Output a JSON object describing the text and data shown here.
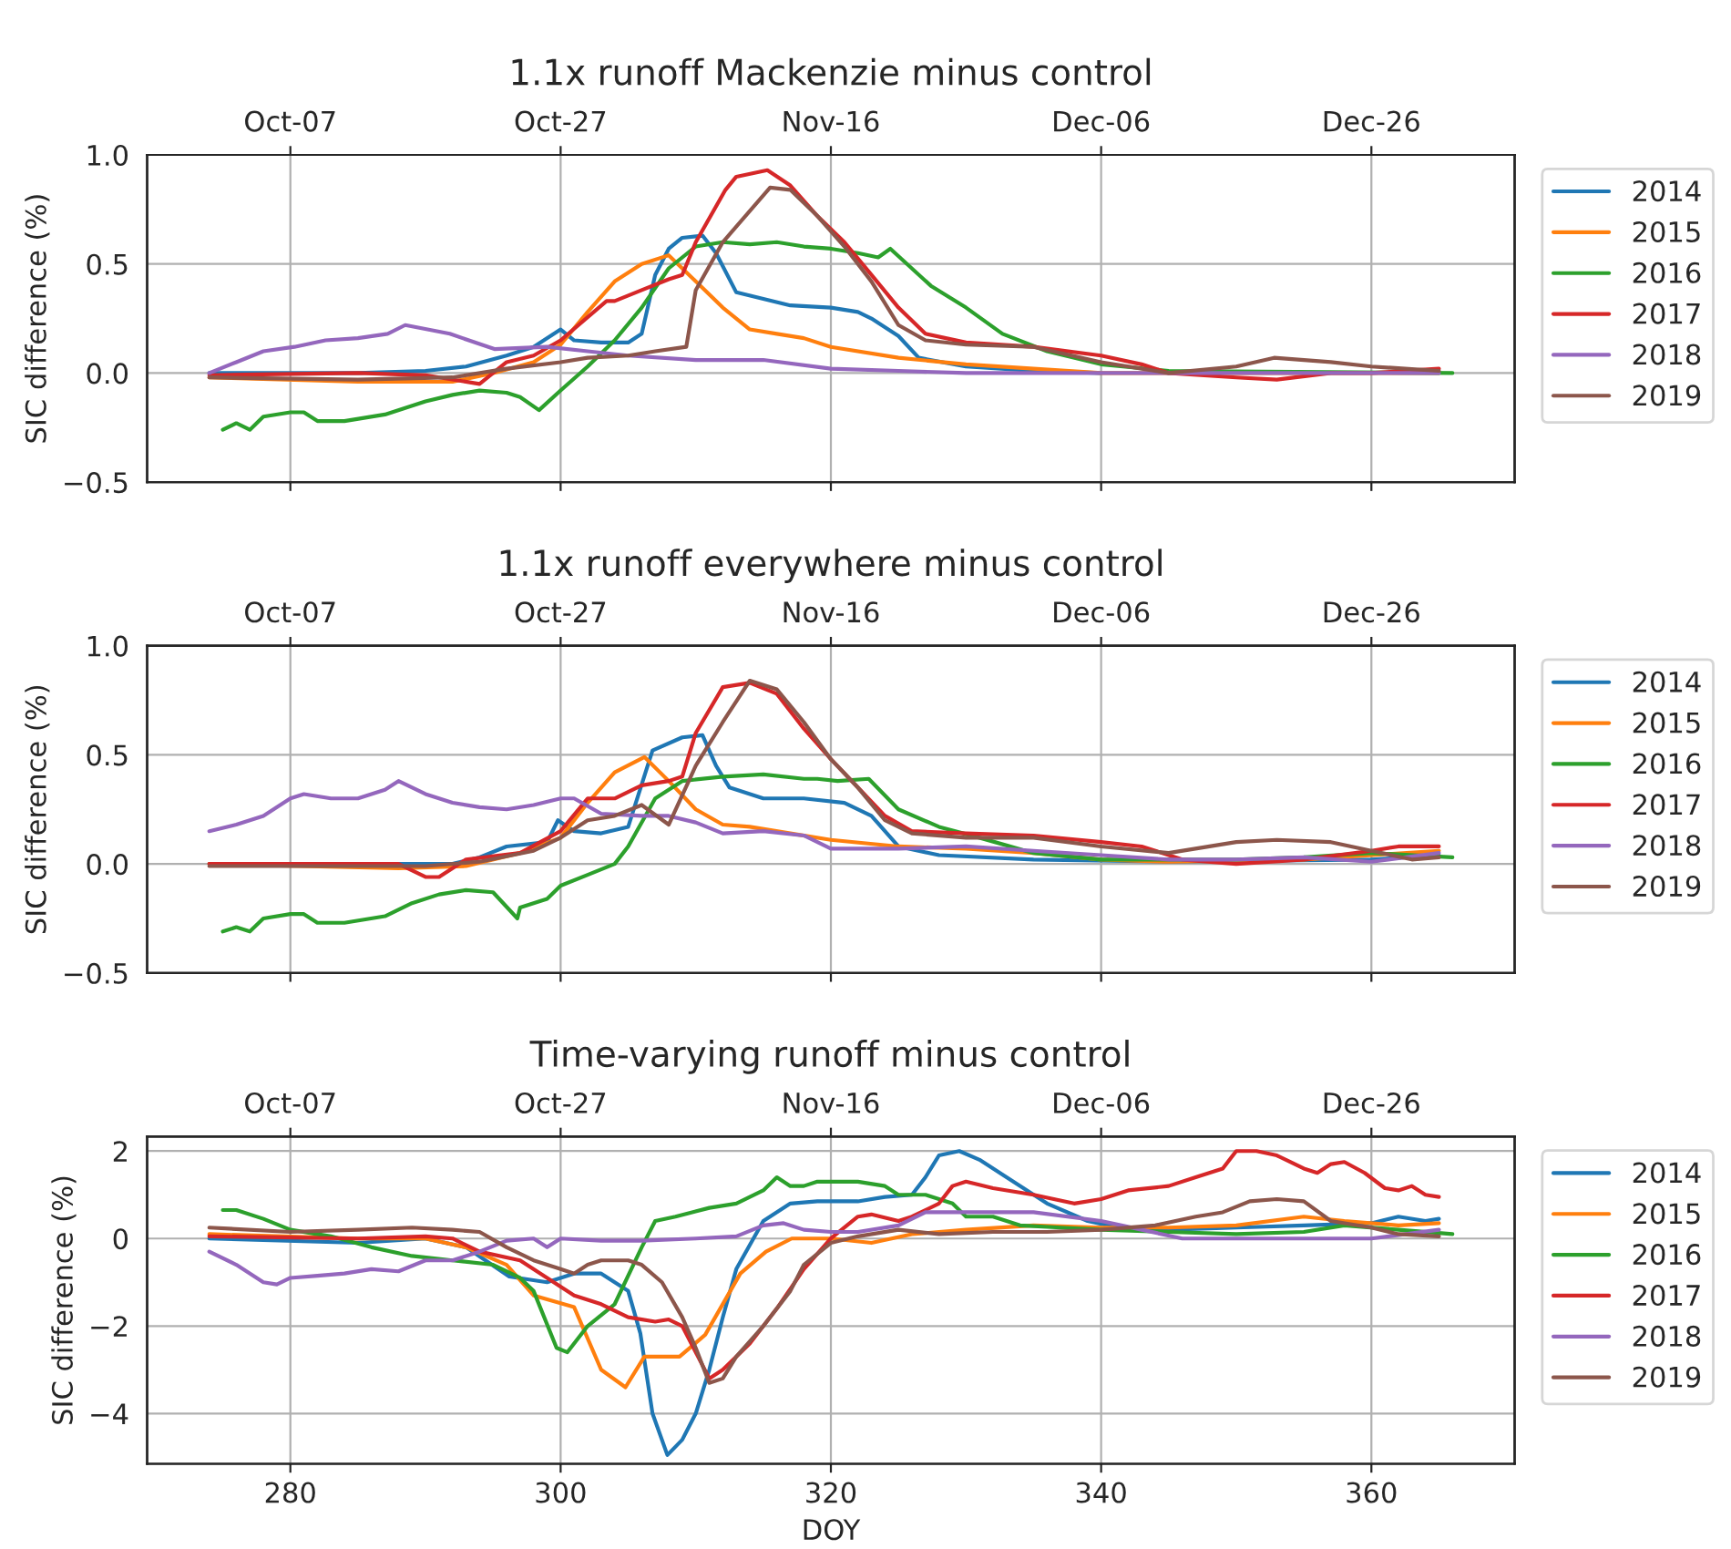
{
  "chart_data": [
    {
      "type": "line",
      "title": "1.1x runoff Mackenzie minus control",
      "ylabel": "SIC difference (%)",
      "xlim": [
        269.4,
        370.6
      ],
      "ylim": [
        -0.5,
        1.0
      ],
      "xticks": [
        280,
        300,
        320,
        340,
        360
      ],
      "tick_labels": "y",
      "x2lim": [
        "2019-09-26T09:36",
        "2020-01-05T14:24"
      ],
      "x2ticks": [
        {
          "value": "2019-10-07",
          "label": "Oct-07"
        },
        {
          "value": "2019-10-27",
          "label": "Oct-27"
        },
        {
          "value": "2019-11-16",
          "label": "Nov-16"
        },
        {
          "value": "2019-12-06",
          "label": "Dec-06"
        },
        {
          "value": "2019-12-26",
          "label": "Dec-26"
        }
      ],
      "yticks": [
        {
          "value": -0.5,
          "label": "−0.5"
        },
        {
          "value": 0,
          "label": "0.0"
        },
        {
          "value": 0.5,
          "label": "0.5"
        },
        {
          "value": 1.0,
          "label": "1.0"
        }
      ],
      "grid": true,
      "legend": "right",
      "line_style": "solid",
      "series": [
        {
          "name": "2014",
          "color": "#1f77b4",
          "x": [
            274,
            280,
            285,
            290,
            293,
            296,
            298,
            300,
            301,
            303,
            305,
            306,
            307,
            308,
            309,
            310.5,
            311.5,
            313,
            315,
            317,
            320,
            322,
            323,
            325,
            326.5,
            330,
            335,
            340
          ],
          "values": [
            0,
            0,
            0,
            0.01,
            0.03,
            0.08,
            0.12,
            0.2,
            0.15,
            0.14,
            0.14,
            0.18,
            0.45,
            0.57,
            0.62,
            0.63,
            0.55,
            0.37,
            0.34,
            0.31,
            0.3,
            0.28,
            0.25,
            0.17,
            0.07,
            0.03,
            0.01,
            0.0
          ]
        },
        {
          "name": "2015",
          "color": "#ff7f0e",
          "x": [
            274,
            285,
            292,
            295,
            298,
            300,
            302,
            304,
            306,
            308,
            310,
            312,
            314,
            316,
            318,
            320,
            325,
            330,
            335,
            340,
            365
          ],
          "values": [
            -0.02,
            -0.04,
            -0.04,
            0.0,
            0.05,
            0.13,
            0.28,
            0.42,
            0.5,
            0.54,
            0.42,
            0.3,
            0.2,
            0.18,
            0.16,
            0.12,
            0.07,
            0.04,
            0.02,
            0.0,
            0.0
          ]
        },
        {
          "name": "2016",
          "color": "#2ca02c",
          "x": [
            275,
            276,
            277,
            278,
            280,
            281,
            282,
            284,
            287,
            290,
            292,
            294,
            296,
            297,
            298.4,
            300,
            302,
            304,
            306,
            308,
            310,
            312,
            314,
            316,
            318,
            320,
            322,
            323.5,
            324.4,
            327.4,
            330,
            332.7,
            336,
            340,
            345,
            366
          ],
          "values": [
            -0.26,
            -0.23,
            -0.26,
            -0.2,
            -0.18,
            -0.18,
            -0.22,
            -0.22,
            -0.19,
            -0.13,
            -0.1,
            -0.08,
            -0.09,
            -0.11,
            -0.17,
            -0.08,
            0.03,
            0.15,
            0.3,
            0.48,
            0.58,
            0.6,
            0.59,
            0.6,
            0.58,
            0.57,
            0.55,
            0.53,
            0.57,
            0.4,
            0.3,
            0.18,
            0.1,
            0.04,
            0.01,
            0.0
          ]
        },
        {
          "name": "2017",
          "color": "#d62728",
          "x": [
            274,
            285,
            290,
            294,
            296,
            298,
            300,
            303.4,
            304,
            306,
            308,
            309,
            310,
            312.2,
            313,
            315.3,
            317,
            319,
            321,
            323,
            325,
            327,
            330,
            335,
            340,
            343,
            345,
            350,
            353,
            357,
            360,
            365
          ],
          "values": [
            -0.01,
            0.0,
            -0.01,
            -0.05,
            0.05,
            0.08,
            0.15,
            0.33,
            0.33,
            0.38,
            0.43,
            0.45,
            0.6,
            0.84,
            0.9,
            0.93,
            0.86,
            0.72,
            0.6,
            0.45,
            0.3,
            0.18,
            0.14,
            0.12,
            0.08,
            0.04,
            0.0,
            -0.02,
            -0.03,
            0.0,
            0.0,
            0.02
          ]
        },
        {
          "name": "2018",
          "color": "#9467bd",
          "x": [
            274,
            276,
            278,
            280.3,
            282.6,
            285,
            287.2,
            288.5,
            291.8,
            295.1,
            299,
            302,
            305,
            310,
            315,
            320,
            325,
            330,
            340,
            365
          ],
          "values": [
            0.0,
            0.05,
            0.1,
            0.12,
            0.15,
            0.16,
            0.18,
            0.22,
            0.18,
            0.11,
            0.12,
            0.1,
            0.08,
            0.06,
            0.06,
            0.02,
            0.01,
            0.0,
            0.0,
            0.0
          ]
        },
        {
          "name": "2019",
          "color": "#8c564b",
          "x": [
            274,
            285,
            292,
            296,
            300,
            302,
            305,
            307,
            309.3,
            310,
            312,
            315.5,
            317,
            319,
            321,
            323,
            325,
            327,
            330,
            335,
            340,
            345,
            350,
            352.8,
            357,
            360,
            365
          ],
          "values": [
            -0.02,
            -0.03,
            -0.02,
            0.02,
            0.05,
            0.07,
            0.08,
            0.1,
            0.12,
            0.38,
            0.6,
            0.85,
            0.84,
            0.72,
            0.58,
            0.42,
            0.22,
            0.15,
            0.13,
            0.12,
            0.05,
            0.0,
            0.03,
            0.07,
            0.05,
            0.03,
            0.01
          ]
        }
      ]
    },
    {
      "type": "line",
      "title": "1.1x runoff everywhere minus control",
      "ylabel": "SIC difference (%)",
      "xlim": [
        269.4,
        370.6
      ],
      "ylim": [
        -0.5,
        1.0
      ],
      "xticks": [
        280,
        300,
        320,
        340,
        360
      ],
      "tick_labels": "y",
      "x2lim": [
        "2019-09-26T09:36",
        "2020-01-05T14:24"
      ],
      "x2ticks": [
        {
          "value": "2019-10-07",
          "label": "Oct-07"
        },
        {
          "value": "2019-10-27",
          "label": "Oct-27"
        },
        {
          "value": "2019-11-16",
          "label": "Nov-16"
        },
        {
          "value": "2019-12-06",
          "label": "Dec-06"
        },
        {
          "value": "2019-12-26",
          "label": "Dec-26"
        }
      ],
      "yticks": [
        {
          "value": -0.5,
          "label": "−0.5"
        },
        {
          "value": 0,
          "label": "0.0"
        },
        {
          "value": 0.5,
          "label": "0.5"
        },
        {
          "value": 1.0,
          "label": "1.0"
        }
      ],
      "grid": true,
      "legend": "right",
      "line_style": "solid",
      "series": [
        {
          "name": "2014",
          "color": "#1f77b4",
          "x": [
            274,
            292,
            294,
            296,
            299,
            299.8,
            301,
            303,
            305,
            306.8,
            309,
            310.5,
            311.5,
            312.5,
            315,
            318,
            321,
            323,
            325,
            328,
            335,
            345,
            360,
            365
          ],
          "values": [
            0,
            0,
            0.03,
            0.08,
            0.1,
            0.2,
            0.15,
            0.14,
            0.17,
            0.52,
            0.58,
            0.59,
            0.45,
            0.35,
            0.3,
            0.3,
            0.28,
            0.22,
            0.08,
            0.04,
            0.02,
            0.01,
            0.02,
            0.04
          ]
        },
        {
          "name": "2015",
          "color": "#ff7f0e",
          "x": [
            274,
            288,
            293,
            297,
            300,
            302,
            304,
            306.2,
            308,
            310,
            312,
            314,
            317,
            320,
            325,
            330,
            335,
            340,
            345,
            355,
            365
          ],
          "values": [
            0.0,
            -0.02,
            -0.01,
            0.05,
            0.12,
            0.28,
            0.42,
            0.49,
            0.38,
            0.25,
            0.18,
            0.17,
            0.14,
            0.11,
            0.08,
            0.07,
            0.05,
            0.02,
            0.01,
            0.02,
            0.06
          ]
        },
        {
          "name": "2016",
          "color": "#2ca02c",
          "x": [
            275,
            276,
            277,
            278,
            280,
            281,
            282,
            284,
            287,
            289,
            291,
            293,
            295,
            296.8,
            297,
            299,
            300,
            302,
            304,
            305,
            307,
            309,
            312,
            315,
            318,
            319,
            320.5,
            322.8,
            325,
            328,
            331,
            335,
            340,
            350,
            355,
            360,
            366
          ],
          "values": [
            -0.31,
            -0.29,
            -0.31,
            -0.25,
            -0.23,
            -0.23,
            -0.27,
            -0.27,
            -0.24,
            -0.18,
            -0.14,
            -0.12,
            -0.13,
            -0.25,
            -0.2,
            -0.16,
            -0.1,
            -0.05,
            0.0,
            0.08,
            0.3,
            0.38,
            0.4,
            0.41,
            0.39,
            0.39,
            0.38,
            0.39,
            0.25,
            0.17,
            0.12,
            0.05,
            0.02,
            0.02,
            0.03,
            0.05,
            0.03
          ]
        },
        {
          "name": "2017",
          "color": "#d62728",
          "x": [
            274,
            288,
            290,
            291,
            293,
            297,
            300,
            302,
            304,
            306,
            308,
            309,
            310,
            312,
            314,
            316,
            318,
            320,
            322,
            324,
            326,
            330,
            335,
            340,
            343,
            346,
            350,
            355,
            360,
            362,
            365
          ],
          "values": [
            0,
            0.0,
            -0.06,
            -0.06,
            0.02,
            0.05,
            0.15,
            0.3,
            0.3,
            0.36,
            0.38,
            0.4,
            0.6,
            0.81,
            0.83,
            0.78,
            0.62,
            0.48,
            0.35,
            0.22,
            0.15,
            0.14,
            0.13,
            0.1,
            0.08,
            0.02,
            0.0,
            0.02,
            0.06,
            0.08,
            0.08
          ]
        },
        {
          "name": "2018",
          "color": "#9467bd",
          "x": [
            274,
            276,
            278,
            280,
            281,
            283,
            285,
            287,
            288,
            290,
            292,
            294,
            296,
            298,
            300,
            301,
            303,
            306,
            308,
            310,
            312,
            315,
            318,
            320,
            325,
            330,
            335,
            340,
            345,
            350,
            355,
            360,
            365
          ],
          "values": [
            0.15,
            0.18,
            0.22,
            0.3,
            0.32,
            0.3,
            0.3,
            0.34,
            0.38,
            0.32,
            0.28,
            0.26,
            0.25,
            0.27,
            0.3,
            0.3,
            0.23,
            0.22,
            0.22,
            0.19,
            0.14,
            0.15,
            0.13,
            0.07,
            0.07,
            0.08,
            0.06,
            0.04,
            0.02,
            0.02,
            0.03,
            0.01,
            0.05
          ]
        },
        {
          "name": "2019",
          "color": "#8c564b",
          "x": [
            274,
            290,
            294,
            298,
            300,
            302,
            304,
            306,
            308,
            310,
            312,
            314,
            316,
            318,
            320,
            322,
            324,
            326,
            330,
            335,
            340,
            345,
            350,
            353,
            357,
            360,
            363,
            365
          ],
          "values": [
            -0.01,
            -0.01,
            0.01,
            0.06,
            0.12,
            0.2,
            0.22,
            0.27,
            0.18,
            0.45,
            0.65,
            0.84,
            0.8,
            0.65,
            0.48,
            0.35,
            0.2,
            0.14,
            0.12,
            0.12,
            0.08,
            0.05,
            0.1,
            0.11,
            0.1,
            0.06,
            0.02,
            0.03
          ]
        }
      ]
    },
    {
      "type": "line",
      "title": "Time-varying runoff minus control",
      "ylabel": "SIC difference (%)",
      "xlabel": "DOY",
      "xlim": [
        269.4,
        370.6
      ],
      "ylim": [
        -5.15,
        2.33
      ],
      "xticks": [
        280,
        300,
        320,
        340,
        360
      ],
      "x2lim": [
        "2019-09-26T09:36",
        "2020-01-05T14:24"
      ],
      "x2ticks": [
        {
          "value": "2019-10-07",
          "label": "Oct-07"
        },
        {
          "value": "2019-10-27",
          "label": "Oct-27"
        },
        {
          "value": "2019-11-16",
          "label": "Nov-16"
        },
        {
          "value": "2019-12-06",
          "label": "Dec-06"
        },
        {
          "value": "2019-12-26",
          "label": "Dec-26"
        }
      ],
      "yticks": [
        {
          "value": -4,
          "label": "−4"
        },
        {
          "value": -2,
          "label": "−2"
        },
        {
          "value": 0,
          "label": "0"
        },
        {
          "value": 2,
          "label": "2"
        }
      ],
      "grid": true,
      "legend": "right",
      "line_style": "solid",
      "series": [
        {
          "name": "2014",
          "color": "#1f77b4",
          "x": [
            274,
            285,
            290,
            293,
            296.2,
            299,
            301,
            303,
            305,
            305.9,
            306.8,
            307.9,
            309,
            310,
            311,
            312,
            313,
            315,
            317,
            319,
            322,
            324,
            326,
            327,
            328,
            329.5,
            331,
            333,
            336,
            339,
            342,
            345,
            350,
            355,
            360,
            362,
            364,
            365
          ],
          "values": [
            0,
            -0.1,
            0.0,
            -0.2,
            -0.87,
            -1.0,
            -0.8,
            -0.8,
            -1.2,
            -2.17,
            -4.0,
            -4.95,
            -4.6,
            -4.0,
            -3.0,
            -1.8,
            -0.7,
            0.4,
            0.8,
            0.85,
            0.85,
            0.95,
            1.0,
            1.4,
            1.9,
            2.0,
            1.8,
            1.4,
            0.8,
            0.4,
            0.2,
            0.2,
            0.25,
            0.3,
            0.35,
            0.5,
            0.4,
            0.45
          ]
        },
        {
          "name": "2015",
          "color": "#ff7f0e",
          "x": [
            274,
            285,
            290,
            293,
            296,
            298,
            301,
            303,
            304.8,
            306.2,
            308.8,
            310.7,
            313.3,
            315.2,
            317.1,
            320,
            323,
            326,
            330,
            335,
            340,
            345,
            350,
            355,
            358,
            362,
            365
          ],
          "values": [
            0.1,
            0.0,
            0.0,
            -0.2,
            -0.6,
            -1.3,
            -1.57,
            -3.0,
            -3.4,
            -2.7,
            -2.7,
            -2.2,
            -0.8,
            -0.3,
            0.0,
            0.0,
            -0.1,
            0.1,
            0.2,
            0.3,
            0.25,
            0.25,
            0.3,
            0.5,
            0.4,
            0.3,
            0.35
          ]
        },
        {
          "name": "2016",
          "color": "#2ca02c",
          "x": [
            275,
            276,
            278,
            280,
            283,
            286,
            289,
            292,
            295,
            297,
            298,
            299.7,
            300.5,
            302,
            304,
            306,
            307,
            308.5,
            311,
            313,
            315,
            316,
            317,
            318,
            319,
            322,
            324,
            325,
            327,
            329,
            330,
            332,
            334,
            337,
            340,
            345,
            350,
            355,
            358,
            362,
            366
          ],
          "values": [
            0.65,
            0.65,
            0.45,
            0.2,
            0.05,
            -0.2,
            -0.4,
            -0.5,
            -0.6,
            -0.9,
            -1.2,
            -2.5,
            -2.6,
            -2.0,
            -1.5,
            -0.2,
            0.4,
            0.5,
            0.7,
            0.8,
            1.1,
            1.4,
            1.2,
            1.2,
            1.3,
            1.3,
            1.2,
            1.0,
            1.0,
            0.8,
            0.5,
            0.5,
            0.3,
            0.25,
            0.2,
            0.15,
            0.1,
            0.15,
            0.3,
            0.2,
            0.1
          ]
        },
        {
          "name": "2017",
          "color": "#d62728",
          "x": [
            274,
            285,
            290,
            292,
            294,
            297,
            299,
            301,
            303,
            305,
            307,
            308,
            309,
            310,
            311,
            312,
            314,
            316,
            318,
            320,
            322,
            323,
            325,
            326,
            328,
            329,
            330,
            332,
            335,
            338,
            340,
            342,
            345,
            347,
            349,
            350,
            351.5,
            353,
            355,
            356,
            357,
            358,
            359.5,
            361,
            362,
            363,
            364,
            365
          ],
          "values": [
            0.05,
            0.0,
            0.05,
            0.0,
            -0.3,
            -0.5,
            -0.9,
            -1.3,
            -1.5,
            -1.8,
            -1.9,
            -1.85,
            -2.0,
            -2.6,
            -3.2,
            -3.0,
            -2.4,
            -1.6,
            -0.7,
            0.0,
            0.5,
            0.55,
            0.4,
            0.5,
            0.8,
            1.2,
            1.3,
            1.15,
            1.0,
            0.8,
            0.9,
            1.1,
            1.2,
            1.4,
            1.6,
            2.0,
            2.0,
            1.9,
            1.6,
            1.5,
            1.7,
            1.75,
            1.5,
            1.15,
            1.1,
            1.2,
            1.0,
            0.95
          ]
        },
        {
          "name": "2018",
          "color": "#9467bd",
          "x": [
            274,
            276,
            278,
            279,
            280,
            282,
            284,
            286,
            288,
            290,
            292,
            294,
            296,
            298,
            299,
            300,
            303,
            306,
            310,
            313,
            315,
            316.5,
            318,
            320,
            322,
            325,
            327,
            330,
            335,
            340,
            343,
            346,
            350,
            355,
            360,
            365
          ],
          "values": [
            -0.3,
            -0.6,
            -1.0,
            -1.05,
            -0.9,
            -0.85,
            -0.8,
            -0.7,
            -0.75,
            -0.5,
            -0.5,
            -0.3,
            -0.05,
            0.0,
            -0.2,
            0.0,
            -0.05,
            -0.05,
            0.0,
            0.05,
            0.3,
            0.35,
            0.2,
            0.15,
            0.15,
            0.3,
            0.6,
            0.6,
            0.6,
            0.4,
            0.2,
            0.0,
            0.0,
            0.0,
            0.0,
            0.2
          ]
        },
        {
          "name": "2019",
          "color": "#8c564b",
          "x": [
            274,
            280,
            285,
            289,
            292,
            294,
            296,
            298,
            300,
            301,
            302,
            303,
            305,
            306,
            307.5,
            309,
            310,
            311,
            312,
            313,
            315,
            317,
            318,
            320,
            322,
            325,
            328,
            332,
            336,
            340,
            344,
            347,
            349,
            351,
            353,
            355,
            357,
            360,
            362,
            365
          ],
          "values": [
            0.25,
            0.15,
            0.2,
            0.25,
            0.2,
            0.15,
            -0.2,
            -0.5,
            -0.7,
            -0.8,
            -0.6,
            -0.5,
            -0.5,
            -0.6,
            -1.0,
            -1.8,
            -2.5,
            -3.3,
            -3.2,
            -2.7,
            -2.0,
            -1.2,
            -0.6,
            -0.1,
            0.05,
            0.2,
            0.1,
            0.15,
            0.15,
            0.2,
            0.3,
            0.5,
            0.6,
            0.85,
            0.9,
            0.85,
            0.4,
            0.25,
            0.1,
            0.05
          ]
        }
      ]
    }
  ]
}
